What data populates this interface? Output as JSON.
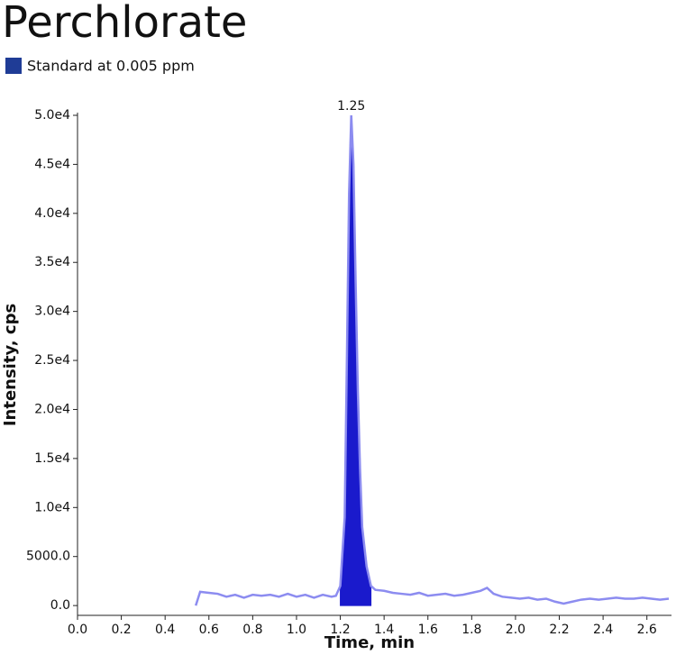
{
  "chart_data": {
    "type": "chromatogram",
    "title": "Perchlorate",
    "xlabel": "Time, min",
    "ylabel": "Intensity, cps",
    "x": [
      0.54,
      0.56,
      0.6,
      0.64,
      0.68,
      0.72,
      0.76,
      0.8,
      0.84,
      0.88,
      0.92,
      0.96,
      1.0,
      1.04,
      1.08,
      1.12,
      1.16,
      1.18,
      1.2,
      1.22,
      1.23,
      1.24,
      1.25,
      1.26,
      1.27,
      1.28,
      1.29,
      1.3,
      1.32,
      1.34,
      1.36,
      1.4,
      1.44,
      1.48,
      1.52,
      1.56,
      1.6,
      1.64,
      1.68,
      1.72,
      1.76,
      1.8,
      1.84,
      1.87,
      1.9,
      1.94,
      1.98,
      2.02,
      2.06,
      2.1,
      2.14,
      2.18,
      2.22,
      2.26,
      2.3,
      2.34,
      2.38,
      2.42,
      2.46,
      2.5,
      2.54,
      2.58,
      2.62,
      2.66,
      2.7
    ],
    "series": [
      {
        "name": "Standard at 0.005 ppm",
        "color": "#1a1acc",
        "line_color": "#8c8cf0",
        "values": [
          0,
          1400,
          1300,
          1200,
          900,
          1100,
          800,
          1100,
          1000,
          1100,
          900,
          1200,
          900,
          1100,
          800,
          1100,
          900,
          1000,
          2000,
          9000,
          25000,
          42000,
          50000,
          45000,
          33000,
          22000,
          14000,
          8000,
          4000,
          2000,
          1600,
          1500,
          1300,
          1200,
          1100,
          1300,
          1000,
          1100,
          1200,
          1000,
          1100,
          1300,
          1500,
          1800,
          1200,
          900,
          800,
          700,
          800,
          600,
          700,
          400,
          200,
          400,
          600,
          700,
          600,
          700,
          800,
          700,
          700,
          800,
          700,
          600,
          700
        ]
      }
    ],
    "legend_color": "#1f3c96",
    "integration_range": [
      1.19,
      1.35
    ],
    "peak_label": {
      "value": 1.25,
      "label": "1.25"
    },
    "xlim": [
      0,
      2.7
    ],
    "ylim": [
      -1000,
      50000
    ],
    "xticks": [
      {
        "value": 0,
        "label": "0.0"
      },
      0.2,
      0.4,
      0.6,
      0.8,
      {
        "value": 1,
        "label": "1.0"
      },
      1.2,
      1.4,
      1.6,
      1.8,
      {
        "value": 2,
        "label": "2.0"
      },
      2.2,
      2.4,
      2.6
    ],
    "yticks": [
      {
        "value": 0,
        "label": "0.0"
      },
      {
        "value": 5000,
        "label": "5000.0"
      },
      {
        "value": 10000,
        "label": "1.0e4"
      },
      {
        "value": 15000,
        "label": "1.5e4"
      },
      {
        "value": 20000,
        "label": "2.0e4"
      },
      {
        "value": 25000,
        "label": "2.5e4"
      },
      {
        "value": 30000,
        "label": "3.0e4"
      },
      {
        "value": 35000,
        "label": "3.5e4"
      },
      {
        "value": 40000,
        "label": "4.0e4"
      },
      {
        "value": 45000,
        "label": "4.5e4"
      },
      {
        "value": 50000,
        "label": "5.0e4"
      }
    ]
  }
}
